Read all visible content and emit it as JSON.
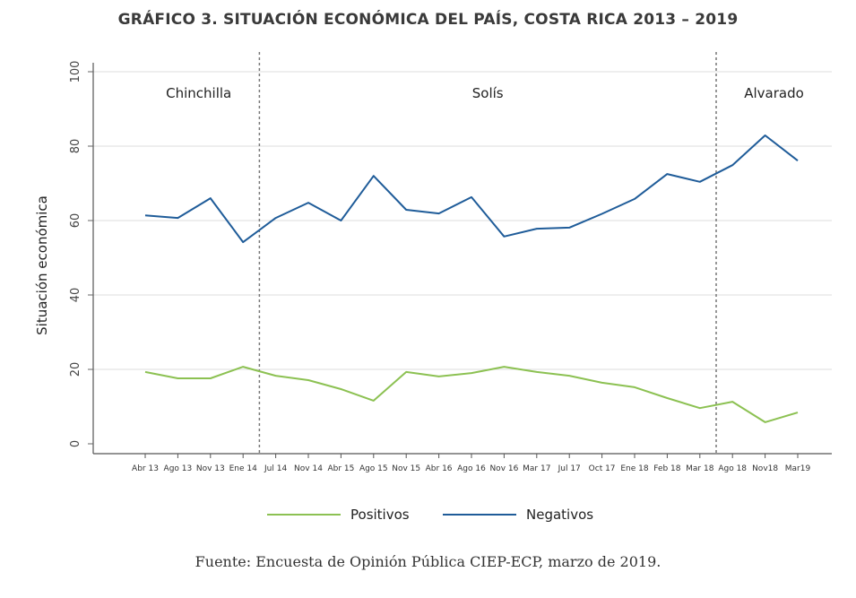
{
  "chart_data": {
    "type": "line",
    "title": "GRÁFICO 3. SITUACIÓN ECONÓMICA DEL PAÍS, COSTA RICA 2013 – 2019",
    "xlabel": "",
    "ylabel": "Situación económica",
    "ylim": [
      0,
      100
    ],
    "yticks": [
      0,
      20,
      40,
      60,
      80,
      100
    ],
    "grid": true,
    "legend_position": "bottom",
    "categories": [
      "Abr 13",
      "Ago 13",
      "Nov 13",
      "Ene 14",
      "Jul 14",
      "Nov 14",
      "Abr 15",
      "Ago 15",
      "Nov 15",
      "Abr 16",
      "Ago 16",
      "Nov 16",
      "Mar 17",
      "Jul 17",
      "Oct 17",
      "Ene 18",
      "Feb 18",
      "Mar 18",
      "Ago 18",
      "Nov18",
      "Mar19"
    ],
    "series": [
      {
        "name": "Positivos",
        "color": "#8cc152",
        "values": [
          19.3,
          17.6,
          17.6,
          20.7,
          18.3,
          17.1,
          14.7,
          11.6,
          19.3,
          18.1,
          19.0,
          20.7,
          19.3,
          18.3,
          16.4,
          15.2,
          12.3,
          9.6,
          11.3,
          5.8,
          8.4
        ]
      },
      {
        "name": "Negativos",
        "color": "#1f5c99",
        "values": [
          61.4,
          60.7,
          66.0,
          54.2,
          60.7,
          64.8,
          60.0,
          72.0,
          62.9,
          61.9,
          66.3,
          55.7,
          57.8,
          58.1,
          61.8,
          65.8,
          72.5,
          70.4,
          74.9,
          82.9,
          76.1
        ]
      }
    ],
    "annotations": {
      "periods": [
        {
          "label": "Chinchilla",
          "from_index": 0,
          "to_index": 3
        },
        {
          "label": "Solís",
          "from_index": 4,
          "to_index": 17
        },
        {
          "label": "Alvarado",
          "from_index": 18,
          "to_index": 20
        }
      ],
      "dividers_after_index": [
        3,
        17
      ]
    }
  },
  "source": "Fuente: Encuesta de Opinión Pública CIEP-ECP, marzo de 2019."
}
